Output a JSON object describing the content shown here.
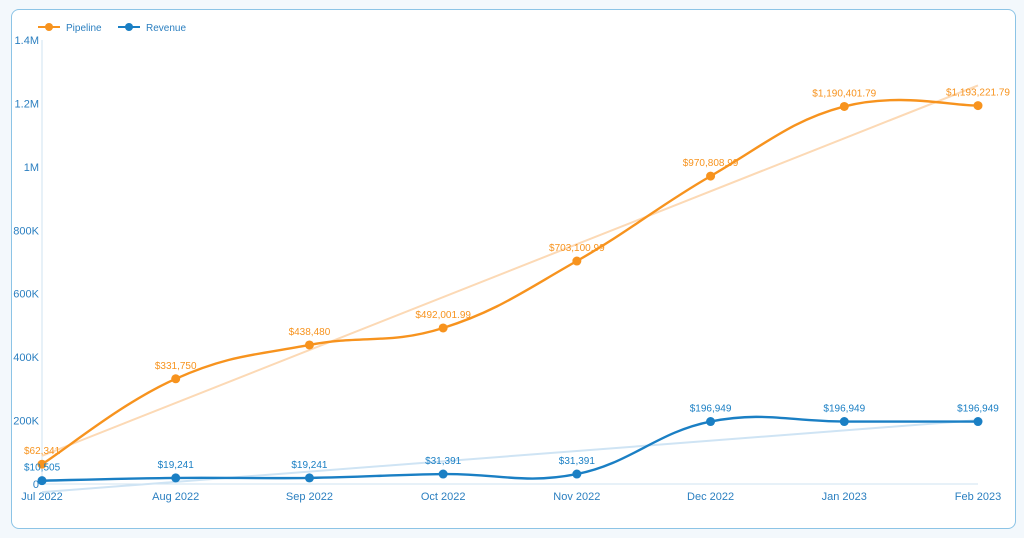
{
  "colors": {
    "pipeline": "#f7931e",
    "revenue": "#1a7fc4",
    "pipeline_trend": "#fcd9b5",
    "revenue_trend": "#cfe4f4",
    "axis": "#cfe3f1",
    "text": "#2b7fc0"
  },
  "chart_data": {
    "type": "line",
    "title": "",
    "xlabel": "",
    "ylabel": "",
    "categories": [
      "Jul 2022",
      "Aug 2022",
      "Sep 2022",
      "Oct 2022",
      "Nov 2022",
      "Dec 2022",
      "Jan 2023",
      "Feb 2023"
    ],
    "ylim": [
      0,
      1400000
    ],
    "y_ticks": [
      0,
      200000,
      400000,
      600000,
      800000,
      1000000,
      1200000,
      1400000
    ],
    "y_tick_labels": [
      "0",
      "200K",
      "400K",
      "600K",
      "800K",
      "1M",
      "1.2M",
      "1.4M"
    ],
    "legend_position": "top-left",
    "grid": false,
    "trendlines": true,
    "series": [
      {
        "key": "pipeline",
        "name": "Pipeline",
        "values": [
          62341,
          331750,
          438480,
          492001.99,
          703100.99,
          970808.99,
          1190401.79,
          1193221.79
        ],
        "labels": [
          "$62,341",
          "$331,750",
          "$438,480",
          "$492,001.99",
          "$703,100.99",
          "$970,808.99",
          "$1,190,401.79",
          "$1,193,221.79"
        ]
      },
      {
        "key": "revenue",
        "name": "Revenue",
        "values": [
          10505,
          19241,
          19241,
          31391,
          31391,
          196949,
          196949,
          196949
        ],
        "labels": [
          "$10,505",
          "$19,241",
          "$19,241",
          "$31,391",
          "$31,391",
          "$196,949",
          "$196,949",
          "$196,949"
        ]
      }
    ]
  }
}
